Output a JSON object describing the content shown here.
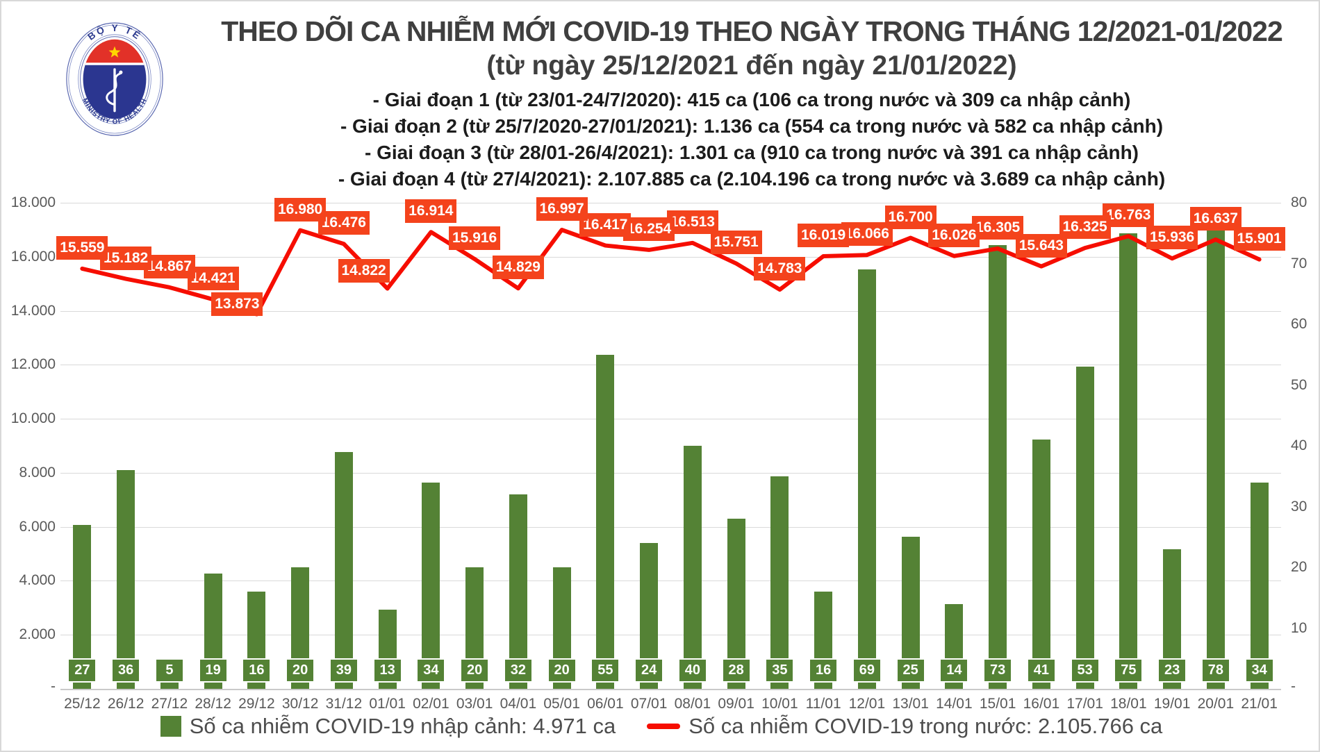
{
  "logo": {
    "org_vi": "BỘ Y TẾ",
    "org_en": "MINISTRY OF HEALTH"
  },
  "header": {
    "title": "THEO DÕI CA NHIỄM MỚI COVID-19 THEO NGÀY TRONG THÁNG 12/2021-01/2022",
    "subtitle": "(từ ngày 25/12/2021 đến ngày 21/01/2022)",
    "phases": [
      "- Giai đoạn 1 (từ 23/01-24/7/2020): 415 ca (106 ca trong nước và 309 ca nhập cảnh)",
      "- Giai đoạn 2 (từ 25/7/2020-27/01/2021): 1.136 ca (554 ca trong nước và 582 ca nhập cảnh)",
      "- Giai đoạn 3 (từ 28/01-26/4/2021): 1.301 ca (910 ca trong nước và 391 ca nhập cảnh)",
      "- Giai đoạn 4 (từ 27/4/2021): 2.107.885 ca (2.104.196 ca trong nước và 3.689 ca nhập cảnh)"
    ]
  },
  "chart_data": {
    "type": "combo",
    "categories": [
      "25/12",
      "26/12",
      "27/12",
      "28/12",
      "29/12",
      "30/12",
      "31/12",
      "01/01",
      "02/01",
      "03/01",
      "04/01",
      "05/01",
      "06/01",
      "07/01",
      "08/01",
      "09/01",
      "10/01",
      "11/01",
      "12/01",
      "13/01",
      "14/01",
      "15/01",
      "16/01",
      "17/01",
      "18/01",
      "19/01",
      "20/01",
      "21/01"
    ],
    "series": [
      {
        "name": "Số ca nhiễm COVID-19 nhập cảnh",
        "type": "bar",
        "axis": "right",
        "color": "#548235",
        "values": [
          27,
          36,
          5,
          19,
          16,
          20,
          39,
          13,
          34,
          20,
          32,
          20,
          55,
          24,
          40,
          28,
          35,
          16,
          69,
          25,
          14,
          73,
          41,
          53,
          75,
          23,
          78,
          34
        ]
      },
      {
        "name": "Số ca nhiễm COVID-19 trong nước",
        "type": "line",
        "axis": "left",
        "color": "#f60d00",
        "label_box_color": "#f4431c",
        "values": [
          15559,
          15182,
          14867,
          14421,
          13873,
          16980,
          16476,
          14822,
          16914,
          15916,
          14829,
          16997,
          16417,
          16254,
          16513,
          15751,
          14783,
          16019,
          16066,
          16700,
          16026,
          16305,
          15643,
          16325,
          16763,
          15936,
          16637,
          15901
        ]
      }
    ],
    "left_axis": {
      "max": 18000,
      "step": 2000,
      "zero_label": "-"
    },
    "right_axis": {
      "max": 80,
      "step": 10,
      "zero_label": "-"
    },
    "grid": true,
    "legend_position": "bottom"
  },
  "legend": {
    "bar_label": "Số ca nhiễm COVID-19 nhập cảnh: 4.971 ca",
    "line_label": "Số ca nhiễm COVID-19 trong nước: 2.105.766 ca"
  }
}
